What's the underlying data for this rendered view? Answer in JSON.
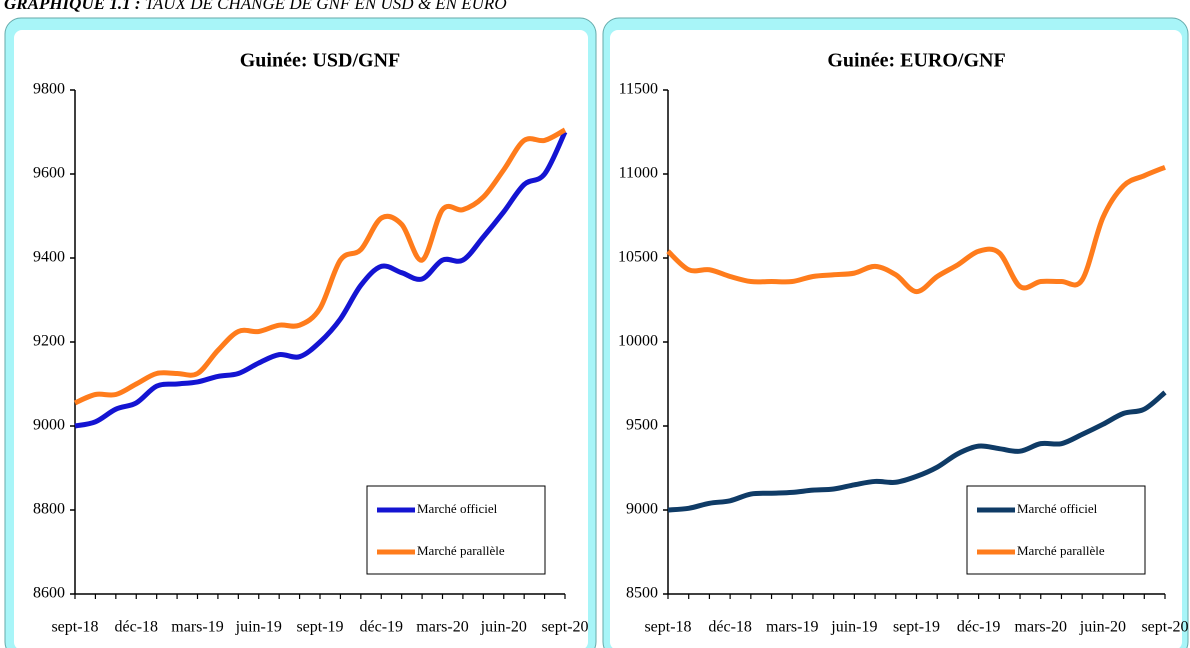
{
  "page_title": {
    "label": "GRAPHIQUE 1.1 :",
    "text": "TAUX DE CHANGE DE GNF EN USD & EN EURO"
  },
  "chart_data": [
    {
      "type": "line",
      "title": "Guinée: USD/GNF",
      "categories": [
        "sept-18",
        null,
        null,
        "déc-18",
        null,
        null,
        "mars-19",
        null,
        null,
        "juin-19",
        null,
        null,
        "sept-19",
        null,
        null,
        "déc-19",
        null,
        null,
        "mars-20",
        null,
        null,
        "juin-20",
        null,
        null,
        "sept-20"
      ],
      "series": [
        {
          "name": "Marché officiel",
          "color": "#1414d2",
          "values": [
            9000,
            9010,
            9040,
            9055,
            9095,
            9100,
            9105,
            9118,
            9125,
            9150,
            9170,
            9165,
            9200,
            9255,
            9335,
            9380,
            9365,
            9350,
            9395,
            9395,
            9450,
            9510,
            9575,
            9600,
            9700
          ]
        },
        {
          "name": "Marché parallèle",
          "color": "#ff7c1c",
          "values": [
            9055,
            9075,
            9075,
            9100,
            9125,
            9125,
            9125,
            9180,
            9225,
            9225,
            9240,
            9240,
            9280,
            9395,
            9420,
            9495,
            9480,
            9395,
            9515,
            9515,
            9545,
            9610,
            9680,
            9680,
            9705
          ]
        }
      ],
      "ylim": [
        8600,
        9800
      ],
      "yticks": [
        8600,
        8800,
        9000,
        9200,
        9400,
        9600,
        9800
      ],
      "legend": "lower right"
    },
    {
      "type": "line",
      "title": "Guinée: EURO/GNF",
      "categories": [
        "sept-18",
        null,
        null,
        "déc-18",
        null,
        null,
        "mars-19",
        null,
        null,
        "juin-19",
        null,
        null,
        "sept-19",
        null,
        null,
        "déc-19",
        null,
        null,
        "mars-20",
        null,
        null,
        "juin-20",
        null,
        null,
        "sept-20"
      ],
      "series": [
        {
          "name": "Marché officiel",
          "color": "#0f3b66",
          "values": [
            9000,
            9010,
            9040,
            9055,
            9095,
            9100,
            9105,
            9118,
            9125,
            9150,
            9170,
            9165,
            9200,
            9255,
            9335,
            9380,
            9365,
            9350,
            9395,
            9395,
            9450,
            9510,
            9575,
            9600,
            9700
          ]
        },
        {
          "name": "Marché parallèle",
          "color": "#ff7c1c",
          "values": [
            10540,
            10430,
            10430,
            10390,
            10360,
            10360,
            10360,
            10390,
            10400,
            10410,
            10450,
            10400,
            10300,
            10390,
            10460,
            10540,
            10530,
            10330,
            10360,
            10360,
            10370,
            10740,
            10930,
            10990,
            11040
          ]
        }
      ],
      "ylim": [
        8500,
        11500
      ],
      "yticks": [
        8500,
        9000,
        9500,
        10000,
        10500,
        11000,
        11500
      ],
      "legend": "lower right"
    }
  ]
}
